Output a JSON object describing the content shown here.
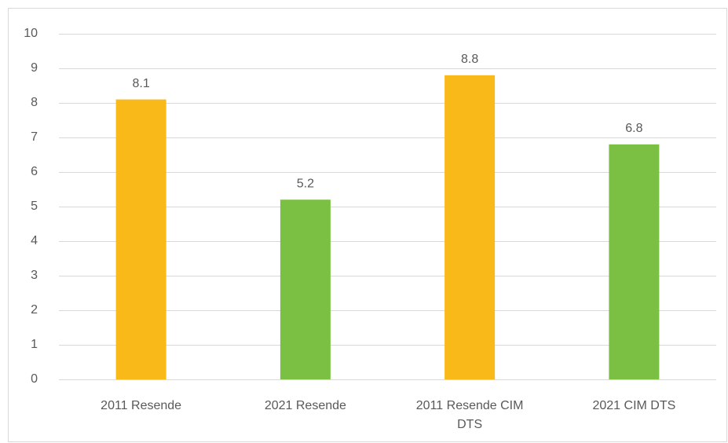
{
  "chart_data": {
    "type": "bar",
    "categories": [
      "2011 Resende",
      "2021 Resende",
      "2011 Resende CIM DTS",
      "2021 CIM DTS"
    ],
    "values": [
      8.1,
      5.2,
      8.8,
      6.8
    ],
    "colors": [
      "#f9b918",
      "#7bc043",
      "#f9b918",
      "#7bc043"
    ],
    "ylim": [
      0,
      10
    ],
    "yticks": [
      0,
      1,
      2,
      3,
      4,
      5,
      6,
      7,
      8,
      9,
      10
    ],
    "grid": true
  }
}
